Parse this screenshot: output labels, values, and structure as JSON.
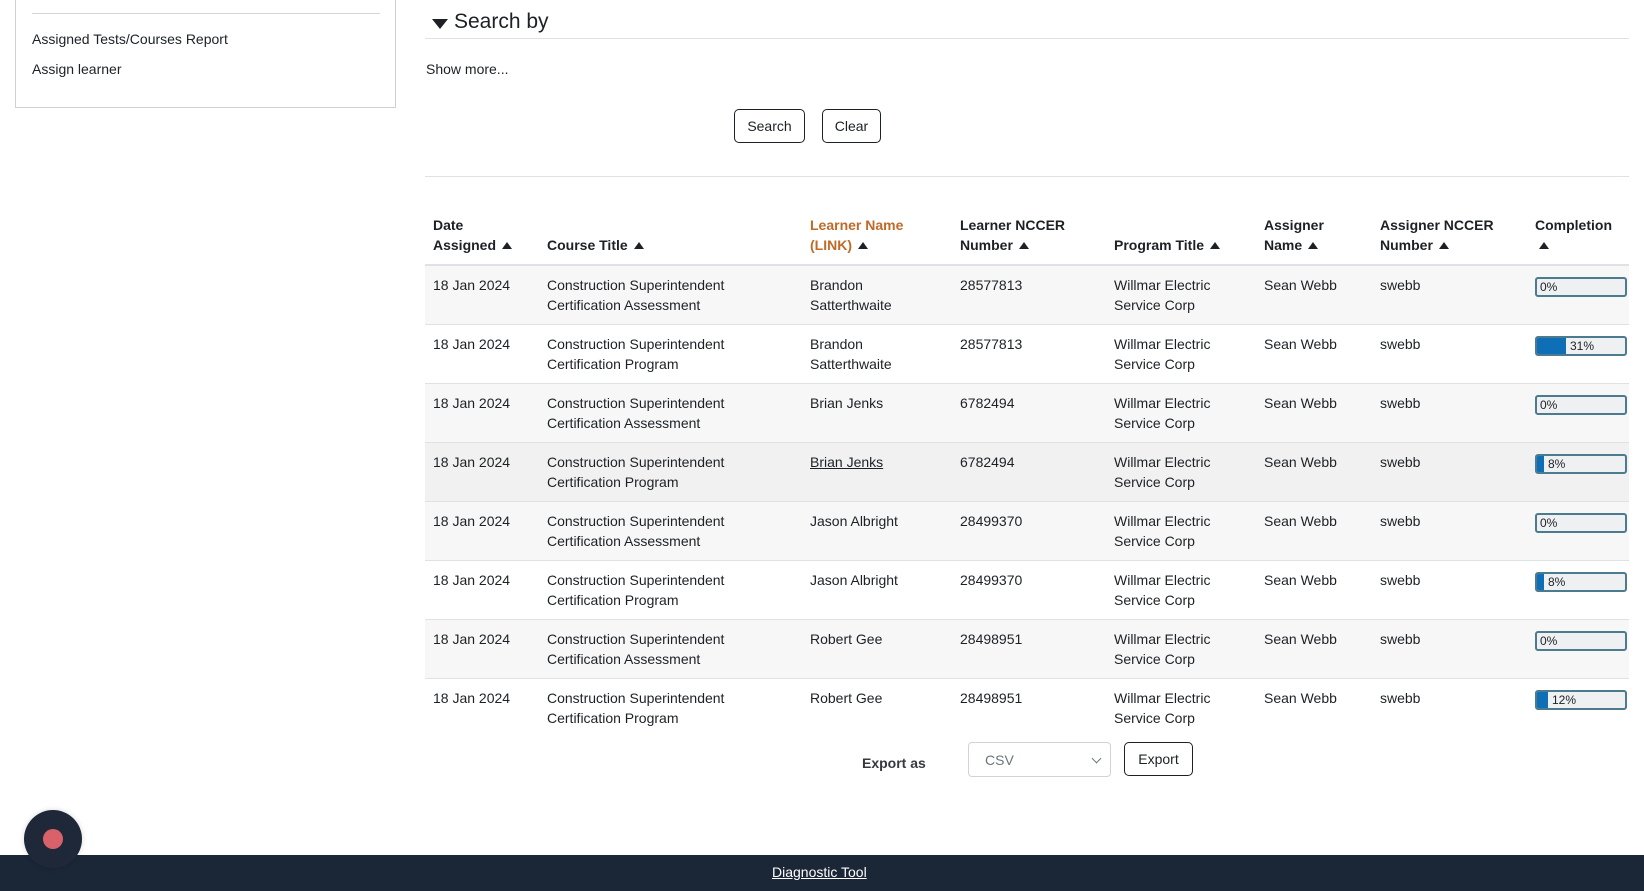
{
  "sidebar": {
    "links": [
      {
        "label": "Assigned Tests/Courses Report"
      },
      {
        "label": "Assign learner"
      }
    ]
  },
  "search": {
    "heading": "Search by",
    "show_more": "Show more...",
    "search_label": "Search",
    "clear_label": "Clear"
  },
  "table": {
    "columns": [
      {
        "line1": "Date",
        "line2": "Assigned"
      },
      {
        "line1": "",
        "line2": "Course Title"
      },
      {
        "line1": "Learner Name",
        "line2": "(LINK)"
      },
      {
        "line1": "Learner NCCER",
        "line2": "Number"
      },
      {
        "line1": "",
        "line2": "Program Title"
      },
      {
        "line1": "Assigner",
        "line2": "Name"
      },
      {
        "line1": "Assigner NCCER",
        "line2": "Number"
      },
      {
        "line1": "Completion",
        "line2": ""
      }
    ],
    "sorted_column_color": "#c06a28",
    "rows": [
      {
        "date": "18 Jan 2024",
        "course_l1": "Construction Superintendent",
        "course_l2": "Certification Assessment",
        "learner_l1": "Brandon",
        "learner_l2": "Satterthwaite",
        "nccer": "28577813",
        "program_l1": "Willmar Electric",
        "program_l2": "Service Corp",
        "assigner": "Sean Webb",
        "assigner_nccer": "swebb",
        "completion": "0%",
        "completion_value": 0
      },
      {
        "date": "18 Jan 2024",
        "course_l1": "Construction Superintendent",
        "course_l2": "Certification Program",
        "learner_l1": "Brandon",
        "learner_l2": "Satterthwaite",
        "nccer": "28577813",
        "program_l1": "Willmar Electric",
        "program_l2": "Service Corp",
        "assigner": "Sean Webb",
        "assigner_nccer": "swebb",
        "completion": "31%",
        "completion_value": 31
      },
      {
        "date": "18 Jan 2024",
        "course_l1": "Construction Superintendent",
        "course_l2": "Certification Assessment",
        "learner_l1": "Brian Jenks",
        "learner_l2": "",
        "nccer": "6782494",
        "program_l1": "Willmar Electric",
        "program_l2": "Service Corp",
        "assigner": "Sean Webb",
        "assigner_nccer": "swebb",
        "completion": "0%",
        "completion_value": 0
      },
      {
        "date": "18 Jan 2024",
        "course_l1": "Construction Superintendent",
        "course_l2": "Certification Program",
        "learner_l1": "Brian Jenks",
        "learner_l2": "",
        "nccer": "6782494",
        "program_l1": "Willmar Electric",
        "program_l2": "Service Corp",
        "assigner": "Sean Webb",
        "assigner_nccer": "swebb",
        "completion": "8%",
        "completion_value": 8
      },
      {
        "date": "18 Jan 2024",
        "course_l1": "Construction Superintendent",
        "course_l2": "Certification Assessment",
        "learner_l1": "Jason Albright",
        "learner_l2": "",
        "nccer": "28499370",
        "program_l1": "Willmar Electric",
        "program_l2": "Service Corp",
        "assigner": "Sean Webb",
        "assigner_nccer": "swebb",
        "completion": "0%",
        "completion_value": 0
      },
      {
        "date": "18 Jan 2024",
        "course_l1": "Construction Superintendent",
        "course_l2": "Certification Program",
        "learner_l1": "Jason Albright",
        "learner_l2": "",
        "nccer": "28499370",
        "program_l1": "Willmar Electric",
        "program_l2": "Service Corp",
        "assigner": "Sean Webb",
        "assigner_nccer": "swebb",
        "completion": "8%",
        "completion_value": 8
      },
      {
        "date": "18 Jan 2024",
        "course_l1": "Construction Superintendent",
        "course_l2": "Certification Assessment",
        "learner_l1": "Robert Gee",
        "learner_l2": "",
        "nccer": "28498951",
        "program_l1": "Willmar Electric",
        "program_l2": "Service Corp",
        "assigner": "Sean Webb",
        "assigner_nccer": "swebb",
        "completion": "0%",
        "completion_value": 0
      },
      {
        "date": "18 Jan 2024",
        "course_l1": "Construction Superintendent",
        "course_l2": "Certification Program",
        "learner_l1": "Robert Gee",
        "learner_l2": "",
        "nccer": "28498951",
        "program_l1": "Willmar Electric",
        "program_l2": "Service Corp",
        "assigner": "Sean Webb",
        "assigner_nccer": "swebb",
        "completion": "12%",
        "completion_value": 12
      }
    ]
  },
  "export": {
    "label": "Export as",
    "selected_format": "CSV",
    "button_label": "Export"
  },
  "footer": {
    "link_label": "Diagnostic Tool"
  },
  "colors": {
    "progress_fill": "#0f6fb6",
    "footer_bg": "#1b2636",
    "fab_dot": "#d9626a"
  }
}
